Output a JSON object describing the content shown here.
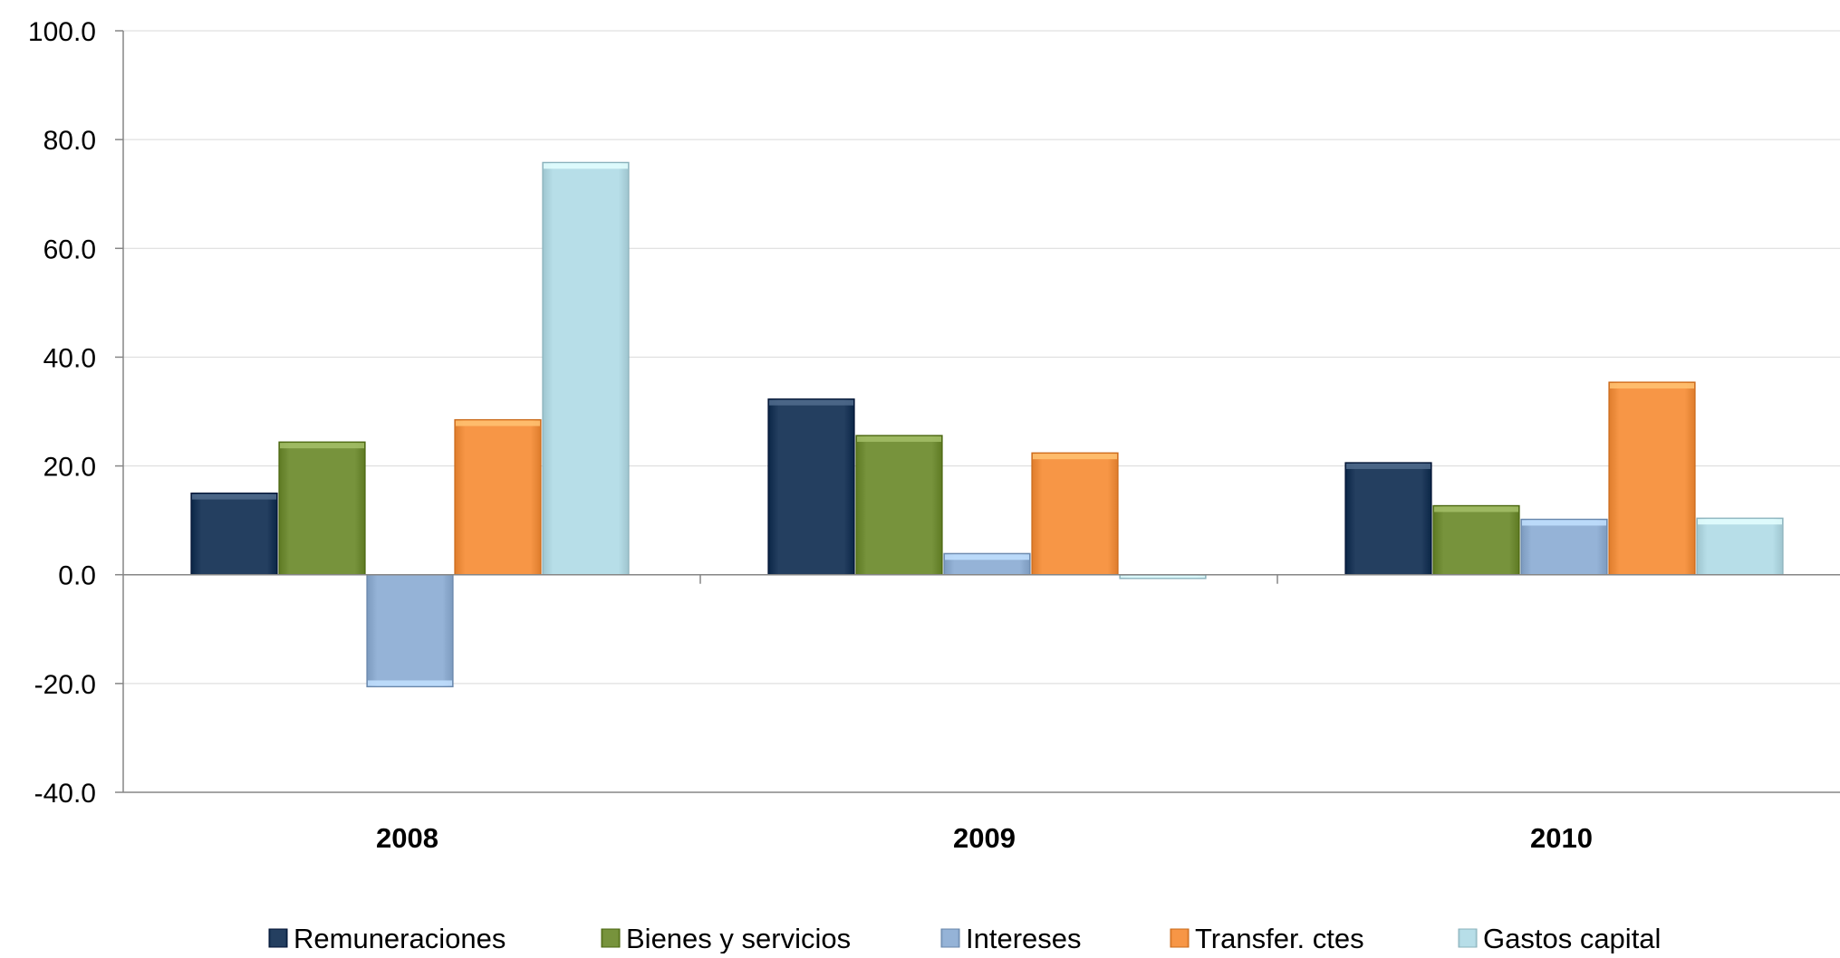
{
  "chart_data": {
    "type": "bar",
    "categories": [
      "2008",
      "2009",
      "2010"
    ],
    "series": [
      {
        "name": "Remuneraciones",
        "color": "#243f60",
        "values": [
          15.0,
          32.3,
          20.6
        ]
      },
      {
        "name": "Bienes y servicios",
        "color": "#77933c",
        "values": [
          24.4,
          25.6,
          12.7
        ]
      },
      {
        "name": "Intereses",
        "color": "#95b3d7",
        "values": [
          -20.6,
          3.9,
          10.2
        ]
      },
      {
        "name": "Transfer. ctes",
        "color": "#f79646",
        "values": [
          28.5,
          22.4,
          35.4
        ]
      },
      {
        "name": "Gastos capital",
        "color": "#b7dee8",
        "values": [
          75.8,
          -0.7,
          10.4
        ]
      }
    ],
    "ylim": [
      -40,
      100
    ],
    "yticks": [
      "100.0",
      "80.0",
      "60.0",
      "40.0",
      "20.0",
      "0.0",
      "-20.0",
      "-40.0"
    ],
    "ytick_values": [
      100,
      80,
      60,
      40,
      20,
      0,
      -20,
      -40
    ],
    "grid": true,
    "legend_position": "bottom"
  }
}
